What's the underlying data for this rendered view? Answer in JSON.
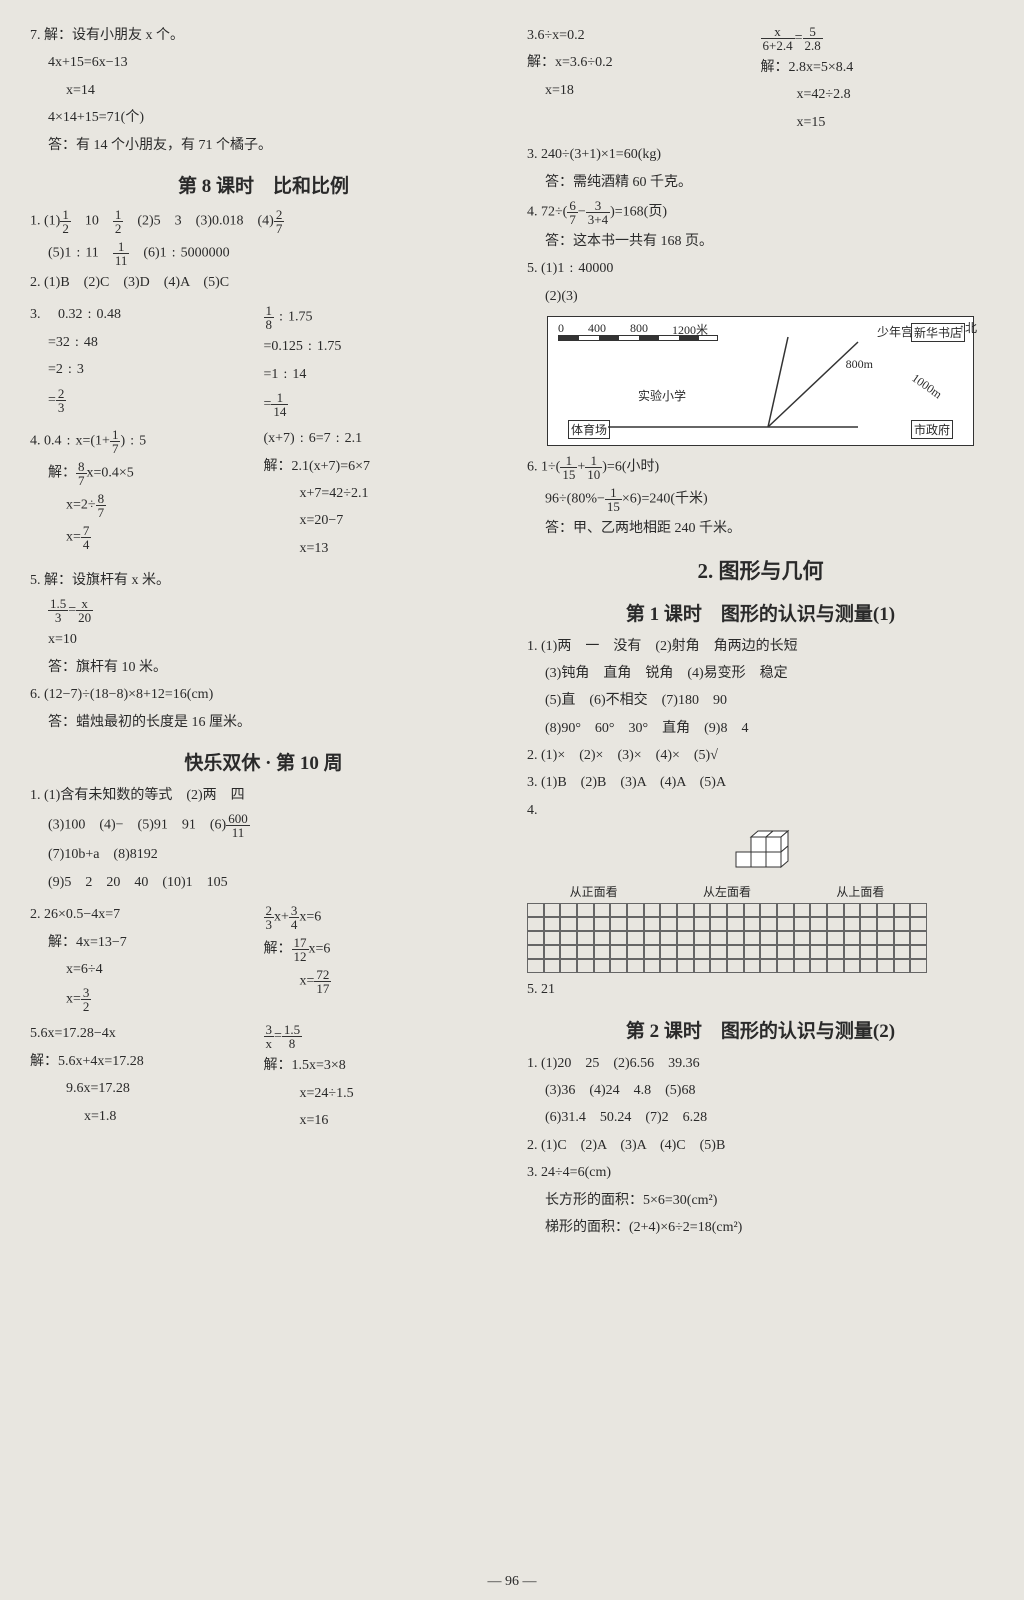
{
  "left": {
    "q7": {
      "l1": "7. 解：设有小朋友 x 个。",
      "l2": "4x+15=6x−13",
      "l3": "x=14",
      "l4": "4×14+15=71(个)",
      "l5": "答：有 14 个小朋友，有 71 个橘子。"
    },
    "title8": "第 8 课时　比和比例",
    "s8": {
      "q1a": "1. (1)",
      "q1b": "　10　",
      "q1c": "　(2)5　3　(3)0.018　(4)",
      "q1d": "(5)1﹕11　",
      "q1e": "　(6)1﹕5000000",
      "q2": "2. (1)B　(2)C　(3)D　(4)A　(5)C",
      "q3l": {
        "a": "3. 　0.32﹕0.48",
        "b": "=32﹕48",
        "c": "=2﹕3",
        "d": "="
      },
      "q3r": {
        "a": "﹕1.75",
        "b": "=0.125﹕1.75",
        "c": "=1﹕14",
        "d": "="
      },
      "q4l": {
        "a": "4. 0.4﹕x=(1+",
        "a2": ")﹕5",
        "b": "解：",
        "b2": "x=0.4×5",
        "c": "x=2÷",
        "d": "x="
      },
      "q4r": {
        "a": "(x+7)﹕6=7﹕2.1",
        "b": "解：2.1(x+7)=6×7",
        "c": "x+7=42÷2.1",
        "d": "x=20−7",
        "e": "x=13"
      },
      "q5": {
        "a": "5. 解：设旗杆有 x 米。",
        "b": "=",
        "c": "x=10",
        "d": "答：旗杆有 10 米。"
      },
      "q6": {
        "a": "6. (12−7)÷(18−8)×8+12=16(cm)",
        "b": "答：蜡烛最初的长度是 16 厘米。"
      }
    },
    "title10": "快乐双休 · 第 10 周",
    "s10": {
      "q1a": "1. (1)含有未知数的等式　(2)两　四",
      "q1b": "(3)100　(4)−　(5)91　91　(6)",
      "q1c": "(7)10b+a　(8)8192",
      "q1d": "(9)5　2　20　40　(10)1　105",
      "q2l": {
        "a": "2. 26×0.5−4x=7",
        "b": "解：4x=13−7",
        "c": "x=6÷4",
        "d": "x="
      },
      "q2r": {
        "a": "x+",
        "a2": "x=6",
        "b": "解：",
        "b2": "x=6",
        "c": "x="
      },
      "q2l2": {
        "a": "5.6x=17.28−4x",
        "b": "解：5.6x+4x=17.28",
        "c": "9.6x=17.28",
        "d": "x=1.8"
      },
      "q2r2": {
        "a": "=",
        "b": "解：1.5x=3×8",
        "c": "x=24÷1.5",
        "d": "x=16"
      }
    }
  },
  "right": {
    "top": {
      "l1a": "3.6÷x=0.2",
      "l1b": "=",
      "l2a": "解：x=3.6÷0.2",
      "l2b": "解：2.8x=5×8.4",
      "l3a": "x=18",
      "l3b": "x=42÷2.8",
      "l4b": "x=15"
    },
    "q3": {
      "a": "3. 240÷(3+1)×1=60(kg)",
      "b": "答：需纯酒精 60 千克。"
    },
    "q4": {
      "a": "4. 72÷(",
      "a2": "−",
      "a3": ")=168(页)",
      "b": "答：这本书一共有 168 页。"
    },
    "q5": {
      "a": "5. (1)1﹕40000",
      "b": "(2)(3)"
    },
    "diagram": {
      "scale": {
        "s0": "0",
        "s1": "400",
        "s2": "800",
        "s3": "1200米"
      },
      "p1": "少年宫",
      "p2": "新华书店",
      "p3": "实验小学",
      "p4": "体育场",
      "p5": "市政府",
      "d1": "800m",
      "d2": "1000m",
      "north": "北"
    },
    "q6": {
      "a": "6. 1÷(",
      "a2": "+",
      "a3": ")=6(小时)",
      "b": "96÷(80%−",
      "b2": "×6)=240(千米)",
      "c": "答：甲、乙两地相距 240 千米。"
    },
    "title_big": "2. 图形与几何",
    "title_s1": "第 1 课时　图形的认识与测量(1)",
    "s1": {
      "q1a": "1. (1)两　一　没有　(2)射角　角两边的长短",
      "q1b": "(3)钝角　直角　锐角　(4)易变形　稳定",
      "q1c": "(5)直　(6)不相交　(7)180　90",
      "q1d": "(8)90°　60°　30°　直角　(9)8　4",
      "q2": "2. (1)×　(2)×　(3)×　(4)×　(5)√",
      "q3": "3. (1)B　(2)B　(3)A　(4)A　(5)A",
      "q4": "4.",
      "labels": {
        "a": "从正面看",
        "b": "从左面看",
        "c": "从上面看"
      },
      "q5": "5. 21"
    },
    "title_s2": "第 2 课时　图形的认识与测量(2)",
    "s2": {
      "q1a": "1. (1)20　25　(2)6.56　39.36",
      "q1b": "(3)36　(4)24　4.8　(5)68",
      "q1c": "(6)31.4　50.24　(7)2　6.28",
      "q2": "2. (1)C　(2)A　(3)A　(4)C　(5)B",
      "q3a": "3. 24÷4=6(cm)",
      "q3b": "长方形的面积：5×6=30(cm²)",
      "q3c": "梯形的面积：(2+4)×6÷2=18(cm²)"
    }
  },
  "pageNum": "— 96 —",
  "colors": {
    "bg": "#e8e6e0",
    "text": "#2a2a2a",
    "border": "#333333"
  }
}
